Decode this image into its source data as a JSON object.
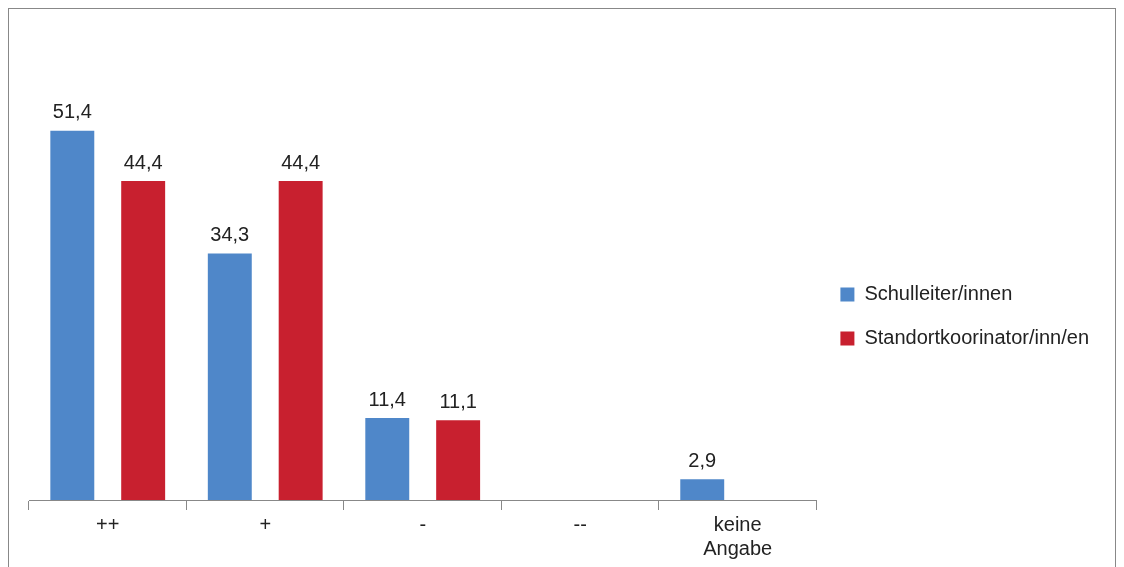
{
  "chart_data": {
    "type": "bar",
    "categories": [
      "++",
      "+",
      "-",
      "--",
      "keine Angabe"
    ],
    "series": [
      {
        "name": "Schulleiter/innen",
        "color": "#4f87c9",
        "values": [
          51.4,
          34.3,
          11.4,
          null,
          2.9
        ],
        "value_labels": [
          "51,4",
          "34,3",
          "11,4",
          null,
          "2,9"
        ]
      },
      {
        "name": "Standortkoorinator/inn/en",
        "color": "#c8202f",
        "values": [
          44.4,
          44.4,
          11.1,
          null,
          null
        ],
        "value_labels": [
          "44,4",
          "44,4",
          "11,1",
          null,
          null
        ]
      }
    ],
    "legend": "right",
    "grid": false
  }
}
